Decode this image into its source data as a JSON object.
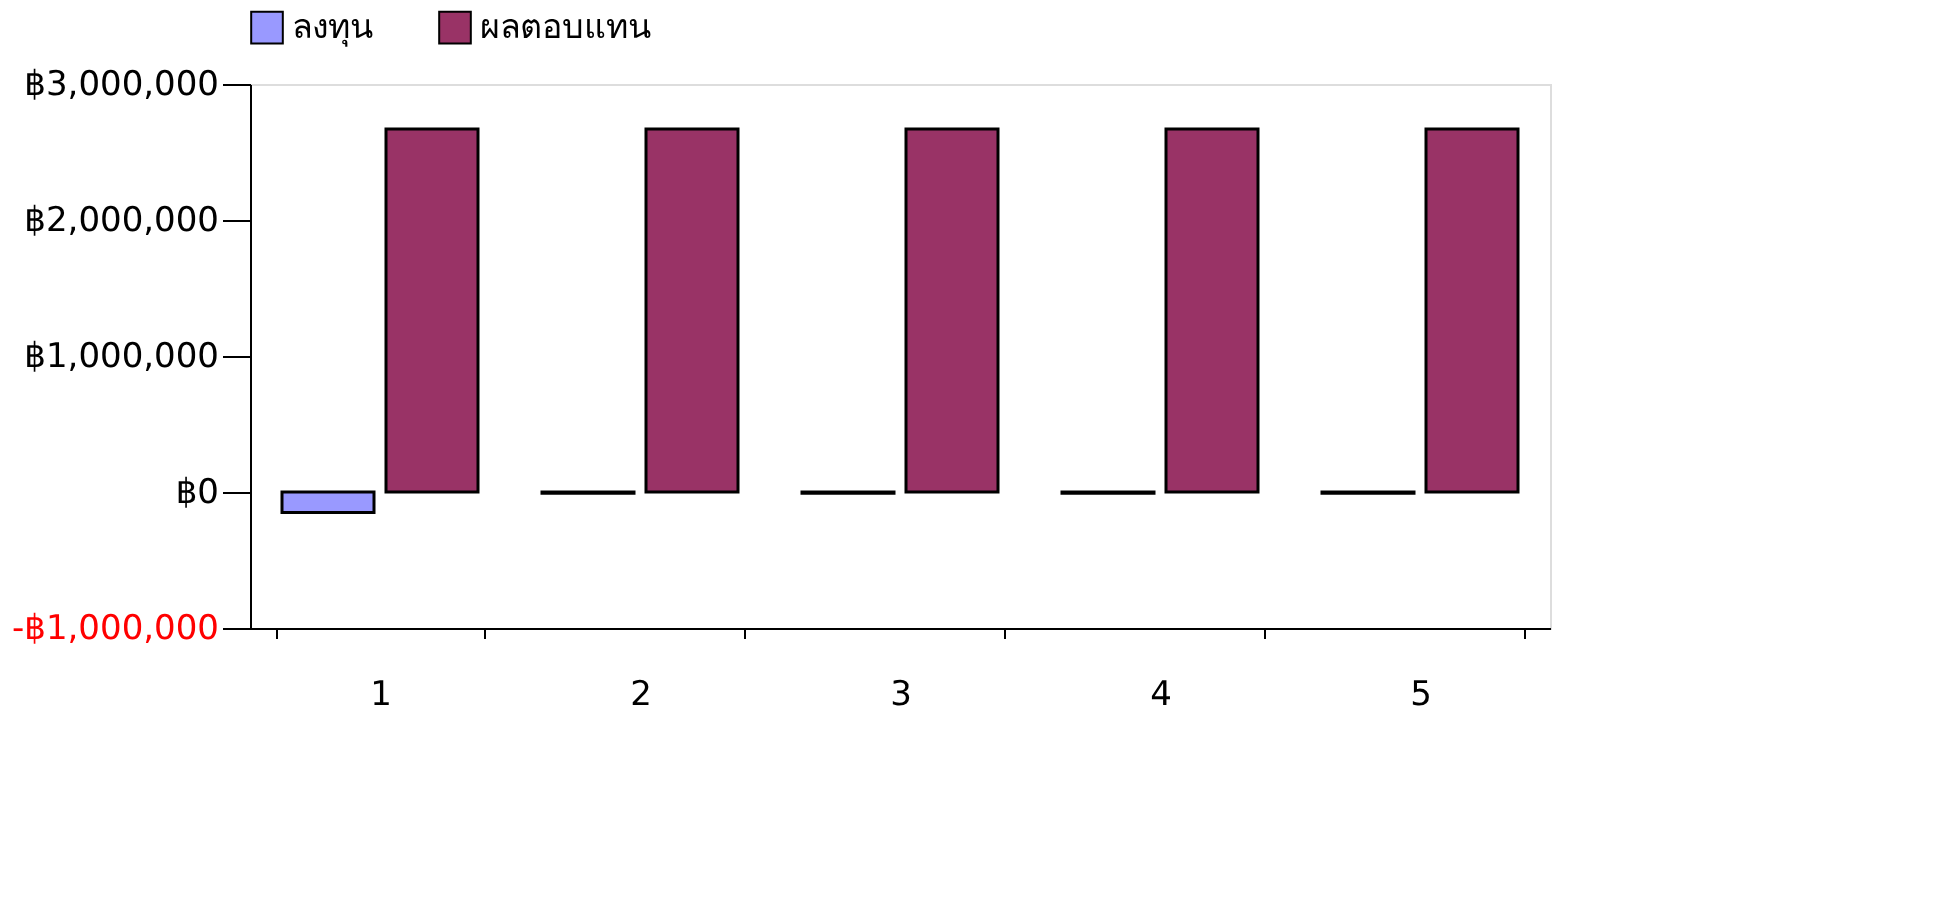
{
  "chart_data": {
    "type": "bar",
    "categories": [
      "1",
      "2",
      "3",
      "4",
      "5"
    ],
    "series": [
      {
        "name": "ลงทุน",
        "color": "#9999ff",
        "values": [
          -150000,
          -10000,
          -10000,
          -10000,
          -10000
        ]
      },
      {
        "name": "ผลตอบแทน",
        "color": "#993366",
        "values": [
          2670000,
          2670000,
          2670000,
          2670000,
          2670000
        ]
      }
    ],
    "ylim": [
      -1000000,
      3000000
    ],
    "yticks": [
      {
        "value": -1000000,
        "label": "-฿1,000,000"
      },
      {
        "value": 0,
        "label": "฿0"
      },
      {
        "value": 1000000,
        "label": "฿1,000,000"
      },
      {
        "value": 2000000,
        "label": "฿2,000,000"
      },
      {
        "value": 3000000,
        "label": "฿3,000,000"
      }
    ],
    "grid": false,
    "legend": "top"
  }
}
